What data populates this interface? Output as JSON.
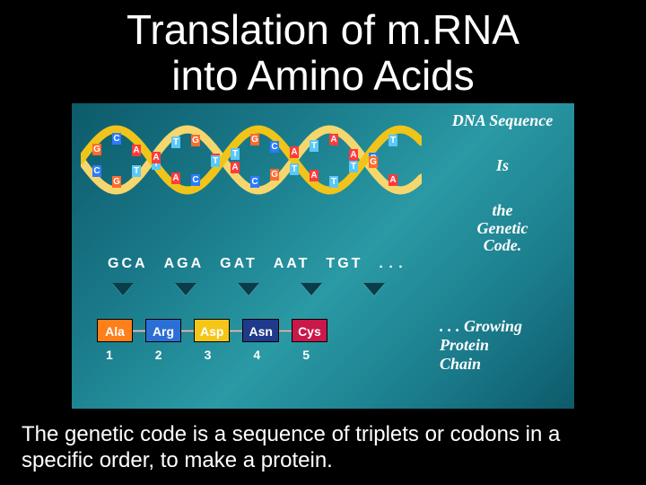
{
  "title_line1": "Translation of m.RNA",
  "title_line2": "into Amino Acids",
  "side": {
    "dna_label": "DNA Sequence",
    "is_label": "Is",
    "genetic_label_1": "the",
    "genetic_label_2": "Genetic",
    "genetic_label_3": "Code."
  },
  "codons": [
    "GCA",
    "AGA",
    "GAT",
    "AAT",
    "TGT"
  ],
  "codon_dots": ". . .",
  "helix": {
    "strand_colors": [
      "#f5d76e",
      "#f0c419"
    ],
    "top_bases": [
      {
        "l": "G",
        "c": "#ff6b2b"
      },
      {
        "l": "C",
        "c": "#2b7bff"
      },
      {
        "l": "A",
        "c": "#ff3b3b"
      },
      {
        "l": "T",
        "c": "#5ac8fa"
      },
      {
        "l": "T",
        "c": "#5ac8fa"
      },
      {
        "l": "G",
        "c": "#ff6b2b"
      },
      {
        "l": "A",
        "c": "#ff3b3b"
      },
      {
        "l": "T",
        "c": "#5ac8fa"
      },
      {
        "l": "G",
        "c": "#ff6b2b"
      },
      {
        "l": "C",
        "c": "#2b7bff"
      },
      {
        "l": "T",
        "c": "#5ac8fa"
      },
      {
        "l": "T",
        "c": "#5ac8fa"
      },
      {
        "l": "A",
        "c": "#ff3b3b"
      },
      {
        "l": "A",
        "c": "#ff3b3b"
      },
      {
        "l": "C",
        "c": "#2b7bff"
      },
      {
        "l": "T",
        "c": "#5ac8fa"
      }
    ],
    "bottom_bases": [
      {
        "l": "C",
        "c": "#2b7bff"
      },
      {
        "l": "G",
        "c": "#ff6b2b"
      },
      {
        "l": "T",
        "c": "#5ac8fa"
      },
      {
        "l": "A",
        "c": "#ff3b3b"
      },
      {
        "l": "A",
        "c": "#ff3b3b"
      },
      {
        "l": "C",
        "c": "#2b7bff"
      },
      {
        "l": "T",
        "c": "#5ac8fa"
      },
      {
        "l": "A",
        "c": "#ff3b3b"
      },
      {
        "l": "C",
        "c": "#2b7bff"
      },
      {
        "l": "G",
        "c": "#ff6b2b"
      },
      {
        "l": "A",
        "c": "#ff3b3b"
      },
      {
        "l": "A",
        "c": "#ff3b3b"
      },
      {
        "l": "T",
        "c": "#5ac8fa"
      },
      {
        "l": "T",
        "c": "#5ac8fa"
      },
      {
        "l": "G",
        "c": "#ff6b2b"
      },
      {
        "l": "A",
        "c": "#ff3b3b"
      }
    ]
  },
  "amino_acids": [
    {
      "abbr": "Ala",
      "color": "#ff7f1a",
      "num": "1"
    },
    {
      "abbr": "Arg",
      "color": "#2b6fd6",
      "num": "2"
    },
    {
      "abbr": "Asp",
      "color": "#f5c518",
      "num": "3"
    },
    {
      "abbr": "Asn",
      "color": "#1f3a8a",
      "num": "4"
    },
    {
      "abbr": "Cys",
      "color": "#c9184a",
      "num": "5"
    }
  ],
  "chain_label_prefix": ". . .",
  "chain_label_1": "Growing",
  "chain_label_2": "Protein",
  "chain_label_3": "Chain",
  "caption": "The genetic code is a sequence of triplets or codons in a specific order, to make a protein."
}
